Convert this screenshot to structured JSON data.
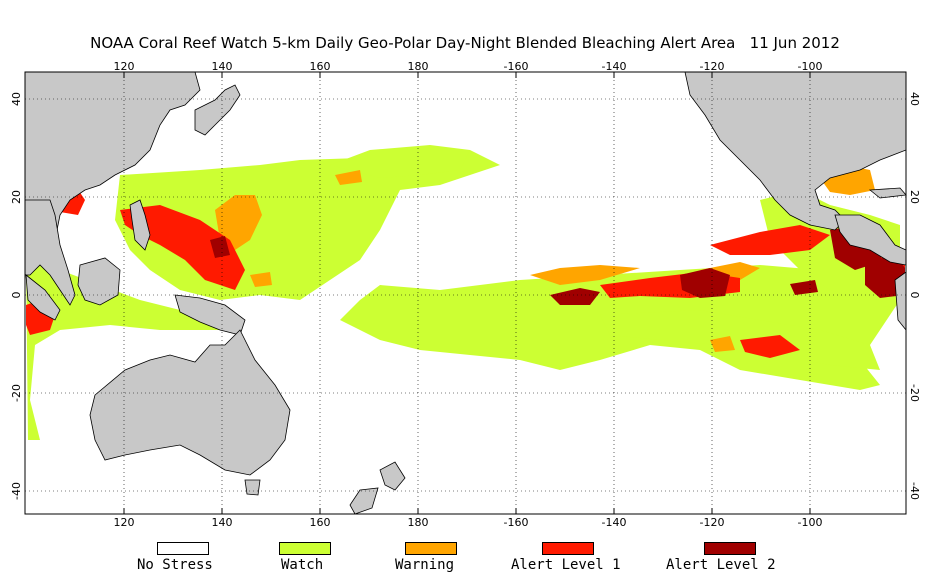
{
  "title": "NOAA Coral Reef Watch 5-km Daily Geo-Polar Day-Night Blended Bleaching Alert Area",
  "date": "11 Jun 2012",
  "axes": {
    "lon_labels": [
      "120",
      "140",
      "160",
      "180",
      "-160",
      "-140",
      "-120",
      "-100"
    ],
    "lat_labels_left": [
      "40",
      "20",
      "0",
      "-20",
      "-40"
    ],
    "lat_labels_right": [
      "40",
      "20",
      "0",
      "-20",
      "-40"
    ]
  },
  "colors": {
    "land": "#c8c8c8",
    "ocean": "#ffffff",
    "no_stress": "#ffffff",
    "watch": "#ccff33",
    "warning": "#ffa500",
    "alert1": "#ff1a00",
    "alert2": "#a00000",
    "grid": "#000000"
  },
  "legend": [
    {
      "label": "No Stress",
      "color": "#ffffff"
    },
    {
      "label": "Watch",
      "color": "#ccff33"
    },
    {
      "label": "Warning",
      "color": "#ffa500"
    },
    {
      "label": "Alert Level 1",
      "color": "#ff1a00"
    },
    {
      "label": "Alert Level 2",
      "color": "#a00000"
    }
  ]
}
